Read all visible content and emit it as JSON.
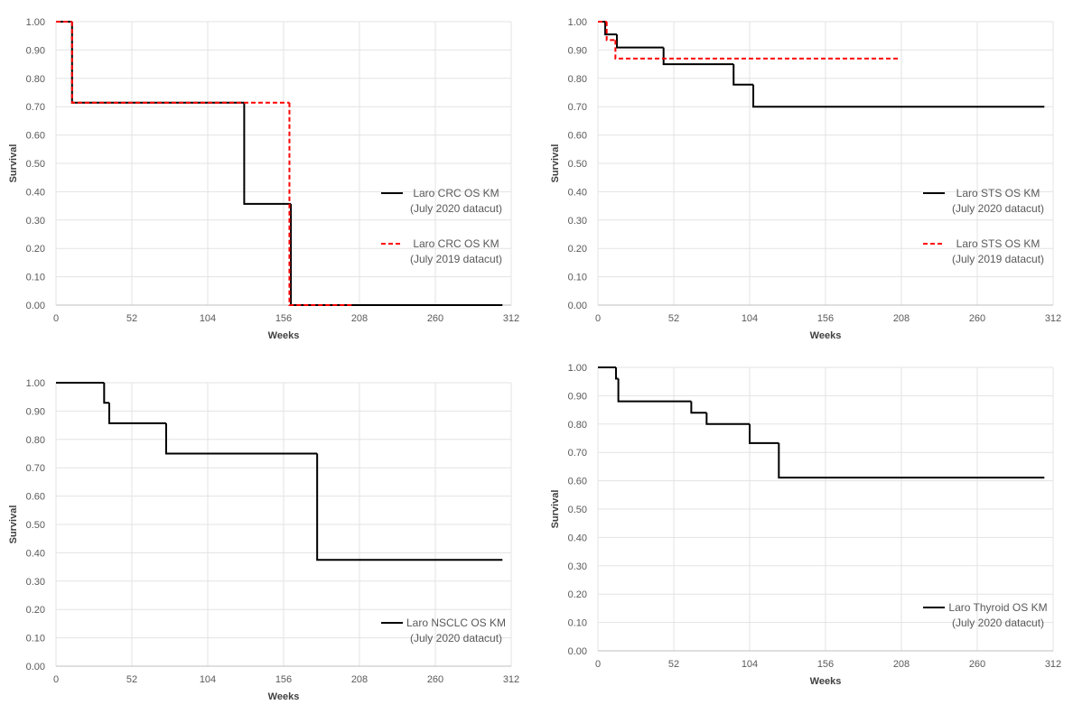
{
  "chart_data": [
    {
      "type": "step",
      "x_label": "Weeks",
      "y_label": "Survival",
      "xlim": [
        0,
        312
      ],
      "xticks": [
        0,
        52,
        104,
        156,
        208,
        260,
        312
      ],
      "ylim": [
        0,
        1
      ],
      "yticks": [
        {
          "value": 0,
          "label": "0.00"
        },
        {
          "value": 0.1,
          "label": "0.10"
        },
        {
          "value": 0.2,
          "label": "0.20"
        },
        {
          "value": 0.3,
          "label": "0.30"
        },
        {
          "value": 0.4,
          "label": "0.40"
        },
        {
          "value": 0.5,
          "label": "0.50"
        },
        {
          "value": 0.6,
          "label": "0.60"
        },
        {
          "value": 0.7,
          "label": "0.70"
        },
        {
          "value": 0.8,
          "label": "0.80"
        },
        {
          "value": 0.9,
          "label": "0.90"
        },
        {
          "value": 1,
          "label": "1.00"
        }
      ],
      "grid": true,
      "legend": "center-right",
      "series": [
        {
          "name": "Laro CRC OS KM (July 2020 datacut)",
          "color": "#000000",
          "line_style": "solid",
          "x": [
            0,
            11,
            129,
            161,
            306
          ],
          "values": [
            1,
            0.714,
            0.357,
            0,
            0
          ]
        },
        {
          "name": "Laro CRC OS KM (July 2019 datacut)",
          "color": "#ff0000",
          "line_style": "dashed",
          "x": [
            0,
            11,
            160,
            203
          ],
          "values": [
            1,
            0.714,
            0,
            0
          ]
        }
      ]
    },
    {
      "type": "step",
      "x_label": "Weeks",
      "y_label": "Survival",
      "xlim": [
        0,
        312
      ],
      "xticks": [
        0,
        52,
        104,
        156,
        208,
        260,
        312
      ],
      "ylim": [
        0,
        1
      ],
      "yticks": [
        {
          "value": 0,
          "label": "0.00"
        },
        {
          "value": 0.1,
          "label": "0.10"
        },
        {
          "value": 0.2,
          "label": "0.20"
        },
        {
          "value": 0.3,
          "label": "0.30"
        },
        {
          "value": 0.4,
          "label": "0.40"
        },
        {
          "value": 0.5,
          "label": "0.50"
        },
        {
          "value": 0.6,
          "label": "0.60"
        },
        {
          "value": 0.7,
          "label": "0.70"
        },
        {
          "value": 0.8,
          "label": "0.80"
        },
        {
          "value": 0.9,
          "label": "0.90"
        },
        {
          "value": 1,
          "label": "1.00"
        }
      ],
      "grid": true,
      "legend": "center-right",
      "series": [
        {
          "name": "Laro STS OS KM (July 2020 datacut)",
          "color": "#000000",
          "line_style": "solid",
          "x": [
            0,
            5,
            13,
            45,
            93,
            106.5,
            306
          ],
          "values": [
            1,
            0.955,
            0.909,
            0.85,
            0.778,
            0.7,
            0.7
          ]
        },
        {
          "name": "Laro STS OS KM (July 2019 datacut)",
          "color": "#ff0000",
          "line_style": "dashed",
          "x": [
            0,
            6,
            12,
            206
          ],
          "values": [
            1,
            0.935,
            0.87,
            0.87
          ]
        }
      ]
    },
    {
      "type": "step",
      "x_label": "Weeks",
      "y_label": "Survival",
      "xlim": [
        0,
        312
      ],
      "xticks": [
        0,
        52,
        104,
        156,
        208,
        260,
        312
      ],
      "ylim": [
        0,
        1
      ],
      "yticks": [
        {
          "value": 0,
          "label": "0.00"
        },
        {
          "value": 0.1,
          "label": "0.10"
        },
        {
          "value": 0.2,
          "label": "0.20"
        },
        {
          "value": 0.3,
          "label": "0.30"
        },
        {
          "value": 0.4,
          "label": "0.40"
        },
        {
          "value": 0.5,
          "label": "0.50"
        },
        {
          "value": 0.6,
          "label": "0.60"
        },
        {
          "value": 0.7,
          "label": "0.70"
        },
        {
          "value": 0.8,
          "label": "0.80"
        },
        {
          "value": 0.9,
          "label": "0.90"
        },
        {
          "value": 1,
          "label": "1.00"
        }
      ],
      "grid": true,
      "legend": "lower-right",
      "series": [
        {
          "name": "Laro NSCLC OS KM (July 2020 datacut)",
          "color": "#000000",
          "line_style": "solid",
          "x": [
            0,
            33,
            36.5,
            75.5,
            179,
            306
          ],
          "values": [
            1,
            0.929,
            0.857,
            0.75,
            0.375,
            0.375
          ]
        }
      ]
    },
    {
      "type": "step",
      "x_label": "Weeks",
      "y_label": "Survival",
      "xlim": [
        0,
        312
      ],
      "xticks": [
        0,
        52,
        104,
        156,
        208,
        260,
        312
      ],
      "ylim": [
        0,
        1
      ],
      "yticks": [
        {
          "value": 0,
          "label": "0.00"
        },
        {
          "value": 0.1,
          "label": "0.10"
        },
        {
          "value": 0.2,
          "label": "0.20"
        },
        {
          "value": 0.3,
          "label": "0.30"
        },
        {
          "value": 0.4,
          "label": "0.40"
        },
        {
          "value": 0.5,
          "label": "0.50"
        },
        {
          "value": 0.6,
          "label": "0.60"
        },
        {
          "value": 0.7,
          "label": "0.70"
        },
        {
          "value": 0.8,
          "label": "0.80"
        },
        {
          "value": 0.9,
          "label": "0.90"
        },
        {
          "value": 1,
          "label": "1.00"
        }
      ],
      "grid": true,
      "legend": "lower-right",
      "series": [
        {
          "name": "Laro Thyroid OS KM (July 2020 datacut)",
          "color": "#000000",
          "line_style": "solid",
          "x": [
            0,
            12.4,
            14,
            64,
            74.5,
            104,
            124,
            306
          ],
          "values": [
            1,
            0.96,
            0.88,
            0.84,
            0.8,
            0.733,
            0.611,
            0.611
          ]
        }
      ]
    }
  ]
}
